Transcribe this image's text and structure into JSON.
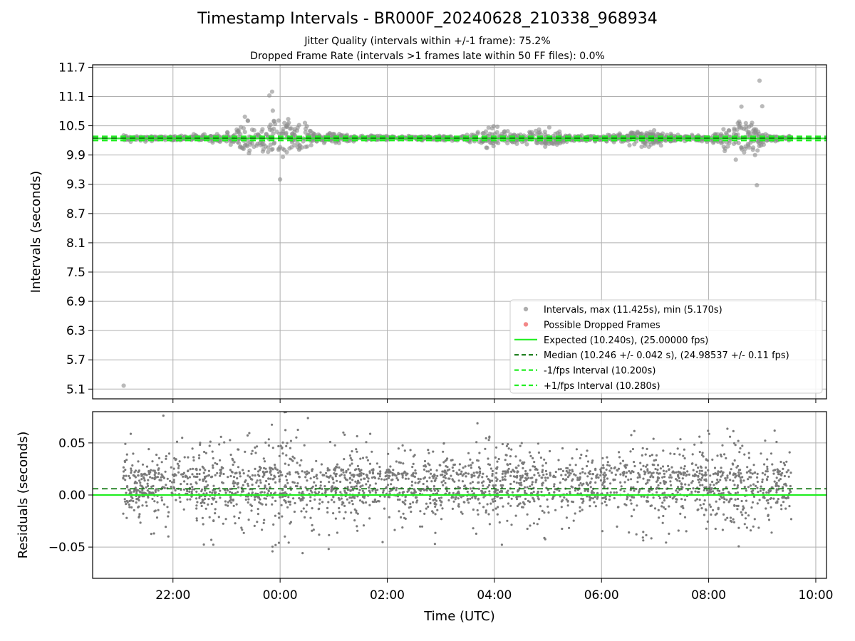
{
  "chart_data": [
    {
      "type": "scatter",
      "title": "Timestamp Intervals - BR000F_20240628_210338_968934",
      "subtitles": [
        "Jitter Quality (intervals within +/-1 frame): 75.2%",
        "Dropped Frame Rate (intervals >1 frames late within 50 FF files): 0.0%"
      ],
      "ylabel": "Intervals (seconds)",
      "xlabel": "",
      "x_unit": "hours UTC (21.0 = 21:00 on day 1, 24 = 00:00 next day)",
      "xlim": [
        20.5,
        34.2
      ],
      "ylim": [
        4.9,
        11.75
      ],
      "yticks": [
        "5.1",
        "5.7",
        "6.3",
        "6.9",
        "7.5",
        "8.1",
        "8.7",
        "9.3",
        "9.9",
        "10.5",
        "11.1",
        "11.7"
      ],
      "grid": true,
      "legend_position": "lower right",
      "series": [
        {
          "name": "Intervals, max (11.425s), min (5.170s)",
          "kind": "points",
          "color": "#8c8c8c",
          "max": 11.425,
          "min": 5.17,
          "center": 10.246,
          "x_start": 21.07,
          "x_end": 33.55,
          "outlier": {
            "x": 21.08,
            "y": 5.17
          }
        },
        {
          "name": "Possible Dropped Frames",
          "kind": "points",
          "color": "#ee5555",
          "values": []
        },
        {
          "name": "Expected (10.240s), (25.00000 fps)",
          "kind": "hline",
          "y": 10.24,
          "color": "#22ee22",
          "style": "solid"
        },
        {
          "name": "Median (10.246 +/- 0.042 s), (24.98537 +/- 0.11 fps)",
          "kind": "hline",
          "y": 10.246,
          "color": "#117711",
          "style": "dashed"
        },
        {
          "name": "-1/fps Interval (10.200s)",
          "kind": "hline",
          "y": 10.2,
          "color": "#22ee22",
          "style": "dashed"
        },
        {
          "name": "+1/fps Interval (10.280s)",
          "kind": "hline",
          "y": 10.28,
          "color": "#22ee22",
          "style": "dashed"
        }
      ]
    },
    {
      "type": "scatter",
      "ylabel": "Residuals (seconds)",
      "xlabel": "Time (UTC)",
      "xlim": [
        20.5,
        34.2
      ],
      "ylim": [
        -0.08,
        0.08
      ],
      "xticks": [
        "22:00",
        "00:00",
        "02:00",
        "04:00",
        "06:00",
        "08:00",
        "10:00"
      ],
      "xtick_values": [
        22,
        24,
        26,
        28,
        30,
        32,
        34
      ],
      "yticks": [
        "−0.05",
        "0.00",
        "0.05"
      ],
      "ytick_values": [
        -0.05,
        0.0,
        0.05
      ],
      "grid": true,
      "series": [
        {
          "name": "",
          "kind": "points",
          "color": "#7a7a7a",
          "x_start": 21.07,
          "x_end": 33.55
        },
        {
          "name": "",
          "kind": "hline",
          "y": 0.0,
          "color": "#22ee22",
          "style": "solid"
        },
        {
          "name": "",
          "kind": "hline",
          "y": 0.006,
          "color": "#117711",
          "style": "dashed"
        }
      ]
    }
  ]
}
